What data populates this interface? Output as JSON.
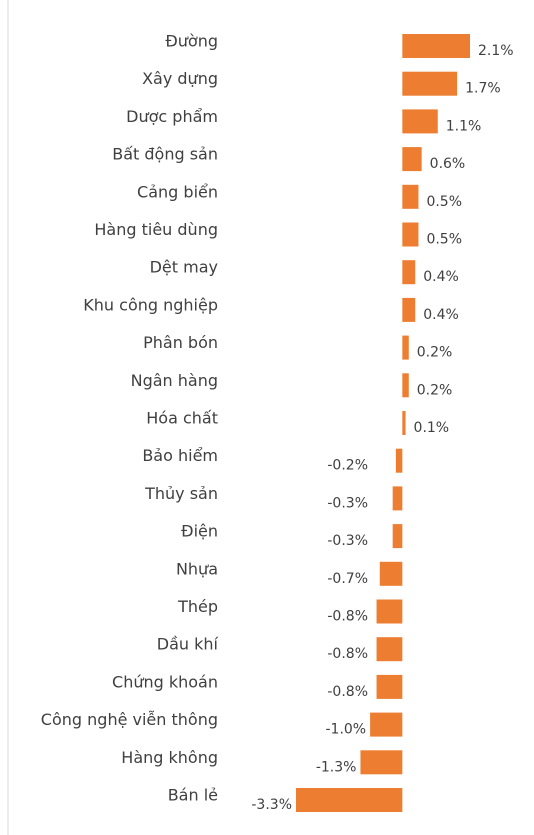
{
  "chart_data": {
    "type": "hbar",
    "categories": [
      "Đường",
      "Xây dựng",
      "Dược phẩm",
      "Bất động sản",
      "Cảng biển",
      "Hàng tiêu dùng",
      "Dệt may",
      "Khu công nghiệp",
      "Phân bón",
      "Ngân hàng",
      "Hóa chất",
      "Bảo hiểm",
      "Thủy sản",
      "Điện",
      "Nhựa",
      "Thép",
      "Dầu khí",
      "Chứng khoán",
      "Công nghệ viễn thông",
      "Hàng không",
      "Bán lẻ"
    ],
    "values": [
      2.1,
      1.7,
      1.1,
      0.6,
      0.5,
      0.5,
      0.4,
      0.4,
      0.2,
      0.2,
      0.1,
      -0.2,
      -0.3,
      -0.3,
      -0.7,
      -0.8,
      -0.8,
      -0.8,
      -1.0,
      -1.3,
      -3.3
    ],
    "value_labels": [
      "2.1%",
      "1.7%",
      "1.1%",
      "0.6%",
      "0.5%",
      "0.5%",
      "0.4%",
      "0.4%",
      "0.2%",
      "0.2%",
      "0.1%",
      "-0.2%",
      "-0.3%",
      "-0.3%",
      "-0.7%",
      "-0.8%",
      "-0.8%",
      "-0.8%",
      "-1.0%",
      "-1.3%",
      "-3.3%"
    ],
    "color": "#ed7d31",
    "xlim": [
      -3.3,
      2.1
    ]
  }
}
